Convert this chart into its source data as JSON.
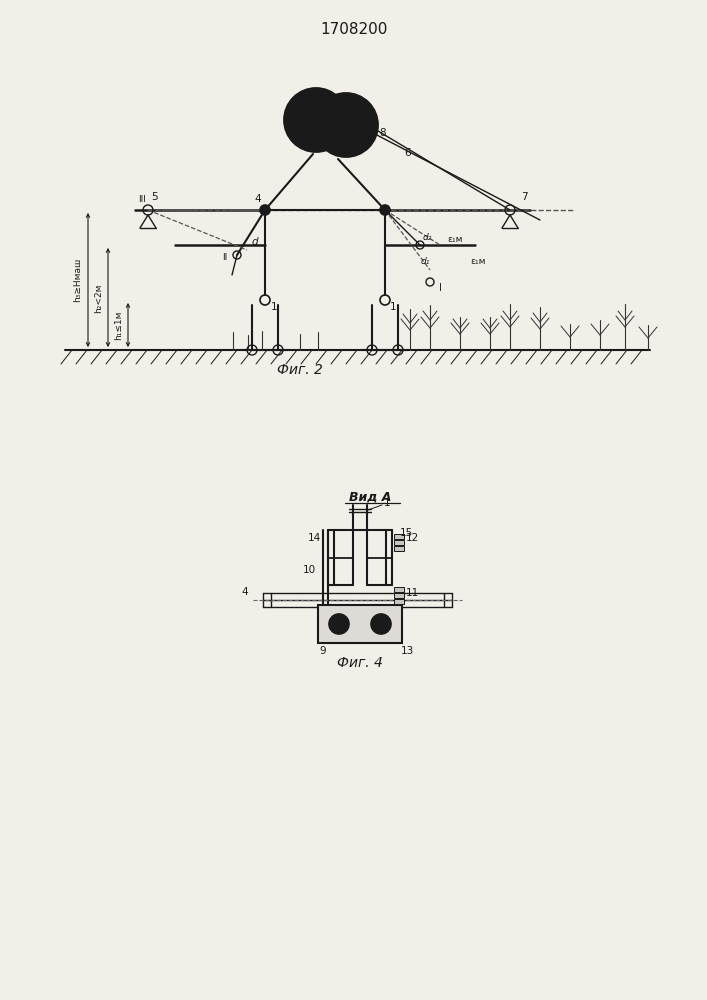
{
  "title": "1708200",
  "bg_color": "#f2efe9",
  "line_color": "#1a1a1a",
  "fig2_label": "Фиг. 2",
  "fig4_label": "Фиг. 4",
  "vid_a_label": "Вид А"
}
